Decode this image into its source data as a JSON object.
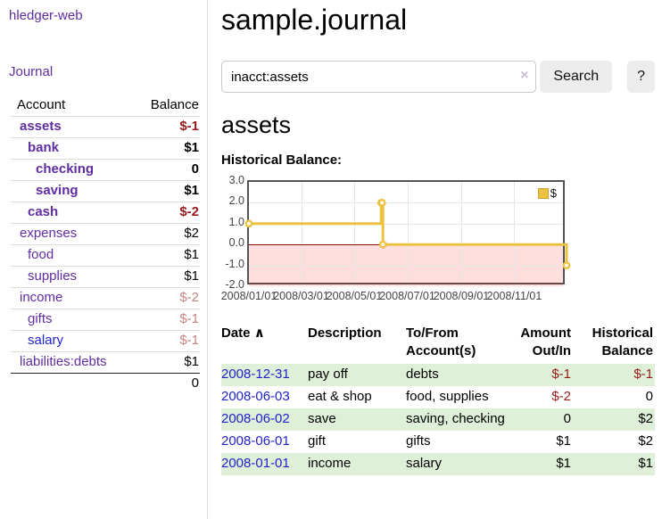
{
  "app": {
    "brand": "hledger-web",
    "nav_journal": "Journal"
  },
  "sidebar": {
    "headers": {
      "account": "Account",
      "balance": "Balance"
    },
    "accounts": [
      {
        "name": "assets",
        "balance": "$-1",
        "depth": 1,
        "current": true,
        "neg": "strong"
      },
      {
        "name": "bank",
        "balance": "$1",
        "depth": 2,
        "current": true,
        "neg": "none"
      },
      {
        "name": "checking",
        "balance": "0",
        "depth": 3,
        "current": true,
        "neg": "none"
      },
      {
        "name": "saving",
        "balance": "$1",
        "depth": 3,
        "current": true,
        "neg": "none"
      },
      {
        "name": "cash",
        "balance": "$-2",
        "depth": 2,
        "current": true,
        "neg": "strong"
      },
      {
        "name": "expenses",
        "balance": "$2",
        "depth": 1,
        "current": false,
        "neg": "none"
      },
      {
        "name": "food",
        "balance": "$1",
        "depth": 2,
        "current": false,
        "neg": "none"
      },
      {
        "name": "supplies",
        "balance": "$1",
        "depth": 2,
        "current": false,
        "neg": "none"
      },
      {
        "name": "income",
        "balance": "$-2",
        "depth": 1,
        "current": false,
        "neg": "soft"
      },
      {
        "name": "gifts",
        "balance": "$-1",
        "depth": 2,
        "current": false,
        "neg": "soft"
      },
      {
        "name": "salary",
        "balance": "$-1",
        "depth": 2,
        "current": false,
        "neg": "soft",
        "link_style": "unvisited"
      },
      {
        "name": "liabilities:debts",
        "balance": "$1",
        "depth": 1,
        "current": false,
        "neg": "none"
      }
    ],
    "total": "0"
  },
  "main": {
    "title": "sample.journal",
    "search": {
      "value": "inacct:assets",
      "clear_icon": "×",
      "submit_label": "Search",
      "help_label": "?"
    },
    "account_title": "assets",
    "chart_title": "Historical Balance:"
  },
  "chart_data": {
    "type": "line",
    "steps": true,
    "title": "Historical Balance",
    "series": [
      {
        "name": "$",
        "color": "#edc240",
        "points": [
          [
            "2008-01-01",
            1
          ],
          [
            "2008-06-01",
            2
          ],
          [
            "2008-06-02",
            2
          ],
          [
            "2008-06-03",
            0
          ],
          [
            "2008-12-31",
            -1
          ]
        ]
      }
    ],
    "xdomain": [
      "2008-01-01",
      "2008-12-31"
    ],
    "ylim": [
      -2,
      3
    ],
    "yticks": [
      {
        "label": "3.0",
        "value": 3
      },
      {
        "label": "2.0",
        "value": 2
      },
      {
        "label": "1.0",
        "value": 1
      },
      {
        "label": "0.0",
        "value": 0
      },
      {
        "label": "-1.0",
        "value": -1
      },
      {
        "label": "-2.0",
        "value": -2
      }
    ],
    "xticks": [
      {
        "label": "2008/01/01",
        "date": "2008-01-01"
      },
      {
        "label": "2008/03/01",
        "date": "2008-03-01"
      },
      {
        "label": "2008/05/01",
        "date": "2008-05-01"
      },
      {
        "label": "2008/07/01",
        "date": "2008-07-01"
      },
      {
        "label": "2008/09/01",
        "date": "2008-09-01"
      },
      {
        "label": "2008/11/01",
        "date": "2008-11-01"
      }
    ],
    "grid": true,
    "legend": {
      "label": "$",
      "position": "top-right"
    },
    "zero_line_color": "#800000",
    "negative_band": {
      "from": 0,
      "to": -2,
      "color": "rgba(255,0,0,0.13)"
    }
  },
  "register": {
    "headers": {
      "date": "Date",
      "sort_icon": "∧",
      "description": "Description",
      "accounts": "To/From Account(s)",
      "amount": "Amount Out/In",
      "balance": "Historical Balance"
    },
    "rows": [
      {
        "date": "2008-12-31",
        "description": "pay off",
        "accounts": "debts",
        "amount": "$-1",
        "amount_negative": true,
        "balance": "$-1",
        "balance_negative": true
      },
      {
        "date": "2008-06-03",
        "description": "eat & shop",
        "accounts": "food, supplies",
        "amount": "$-2",
        "amount_negative": true,
        "balance": "0",
        "balance_negative": false
      },
      {
        "date": "2008-06-02",
        "description": "save",
        "accounts": "saving, checking",
        "amount": "0",
        "amount_negative": false,
        "balance": "$2",
        "balance_negative": false
      },
      {
        "date": "2008-06-01",
        "description": "gift",
        "accounts": "gifts",
        "amount": "$1",
        "amount_negative": false,
        "balance": "$2",
        "balance_negative": false
      },
      {
        "date": "2008-01-01",
        "description": "income",
        "accounts": "salary",
        "amount": "$1",
        "amount_negative": false,
        "balance": "$1",
        "balance_negative": false
      }
    ]
  }
}
